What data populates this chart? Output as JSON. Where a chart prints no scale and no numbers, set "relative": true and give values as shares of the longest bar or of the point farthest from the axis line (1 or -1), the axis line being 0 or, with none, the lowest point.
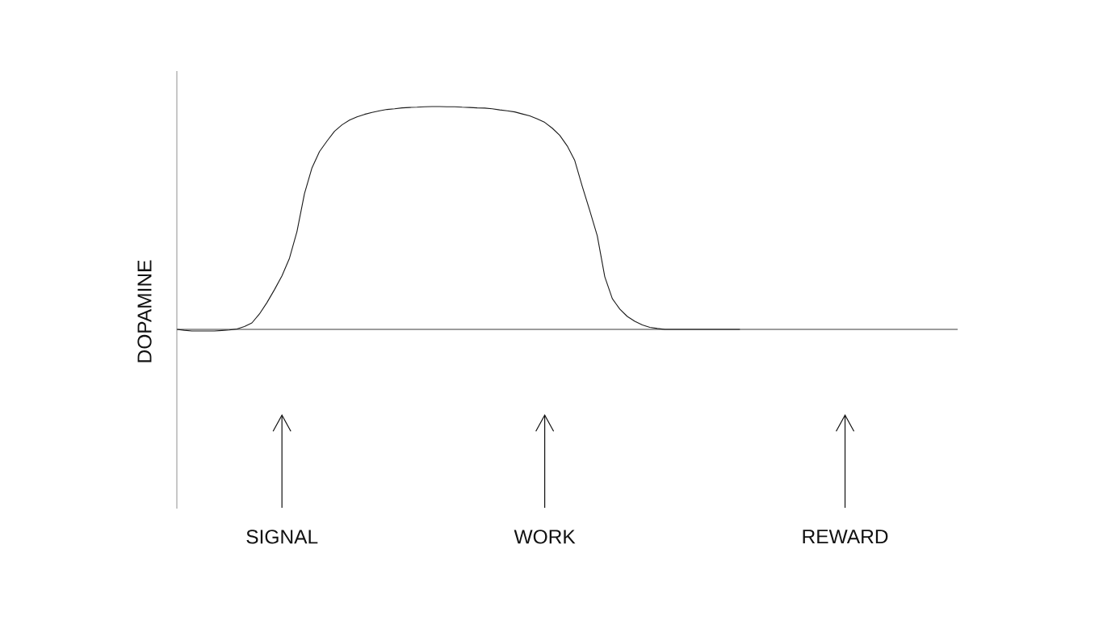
{
  "chart_data": {
    "type": "line",
    "relative": true,
    "ylabel": "DOPAMINE",
    "categories": [
      null,
      null,
      null,
      null,
      null,
      null,
      null,
      null,
      null,
      null,
      null,
      null,
      null,
      null,
      "SIGNAL",
      null,
      null,
      null,
      null,
      null,
      null,
      null,
      null,
      null,
      null,
      null,
      null,
      null,
      null,
      null,
      null,
      null,
      null,
      null,
      null,
      null,
      null,
      null,
      null,
      null,
      null,
      null,
      null,
      null,
      null,
      null,
      null,
      null,
      null,
      "WORK",
      null,
      null,
      null,
      null,
      null,
      null,
      null,
      null,
      null,
      null,
      null,
      null,
      null,
      null,
      null,
      null,
      null,
      null,
      null,
      null,
      null,
      null,
      null,
      null,
      null,
      null,
      null,
      null,
      null,
      null,
      null,
      null,
      null,
      null,
      null,
      null,
      null,
      null,
      null,
      "REWARD",
      null,
      null,
      null,
      null,
      null,
      null,
      null,
      null,
      null,
      null,
      null,
      null,
      null,
      null,
      null
    ],
    "series": [
      {
        "color": "#1a1a1a",
        "values": [
          0.0,
          -0.004,
          -0.007,
          -0.007,
          -0.007,
          -0.007,
          -0.005,
          -0.003,
          0.002,
          0.013,
          0.029,
          0.069,
          0.12,
          0.178,
          0.24,
          0.319,
          0.439,
          0.609,
          0.725,
          0.798,
          0.845,
          0.889,
          0.918,
          0.939,
          0.954,
          0.965,
          0.974,
          0.981,
          0.987,
          0.99,
          0.994,
          0.996,
          0.997,
          0.999,
          1.0,
          1.0,
          0.999,
          0.999,
          0.997,
          0.996,
          0.994,
          0.993,
          0.99,
          0.985,
          0.981,
          0.976,
          0.967,
          0.958,
          0.945,
          0.929,
          0.903,
          0.871,
          0.823,
          0.758,
          0.642,
          0.533,
          0.42,
          0.236,
          0.138,
          0.091,
          0.058,
          0.036,
          0.02,
          0.009,
          0.004,
          0.0,
          0.0,
          0.0,
          0.0,
          0.0,
          0.0,
          0.0,
          0.0,
          0.0,
          0.0,
          0.0,
          null,
          null,
          null,
          null,
          null,
          null,
          null,
          null,
          null,
          null,
          null,
          null,
          null,
          null,
          null,
          null,
          null,
          null,
          null,
          null,
          null,
          null,
          null,
          null,
          null,
          null,
          null,
          null,
          null
        ]
      }
    ]
  }
}
